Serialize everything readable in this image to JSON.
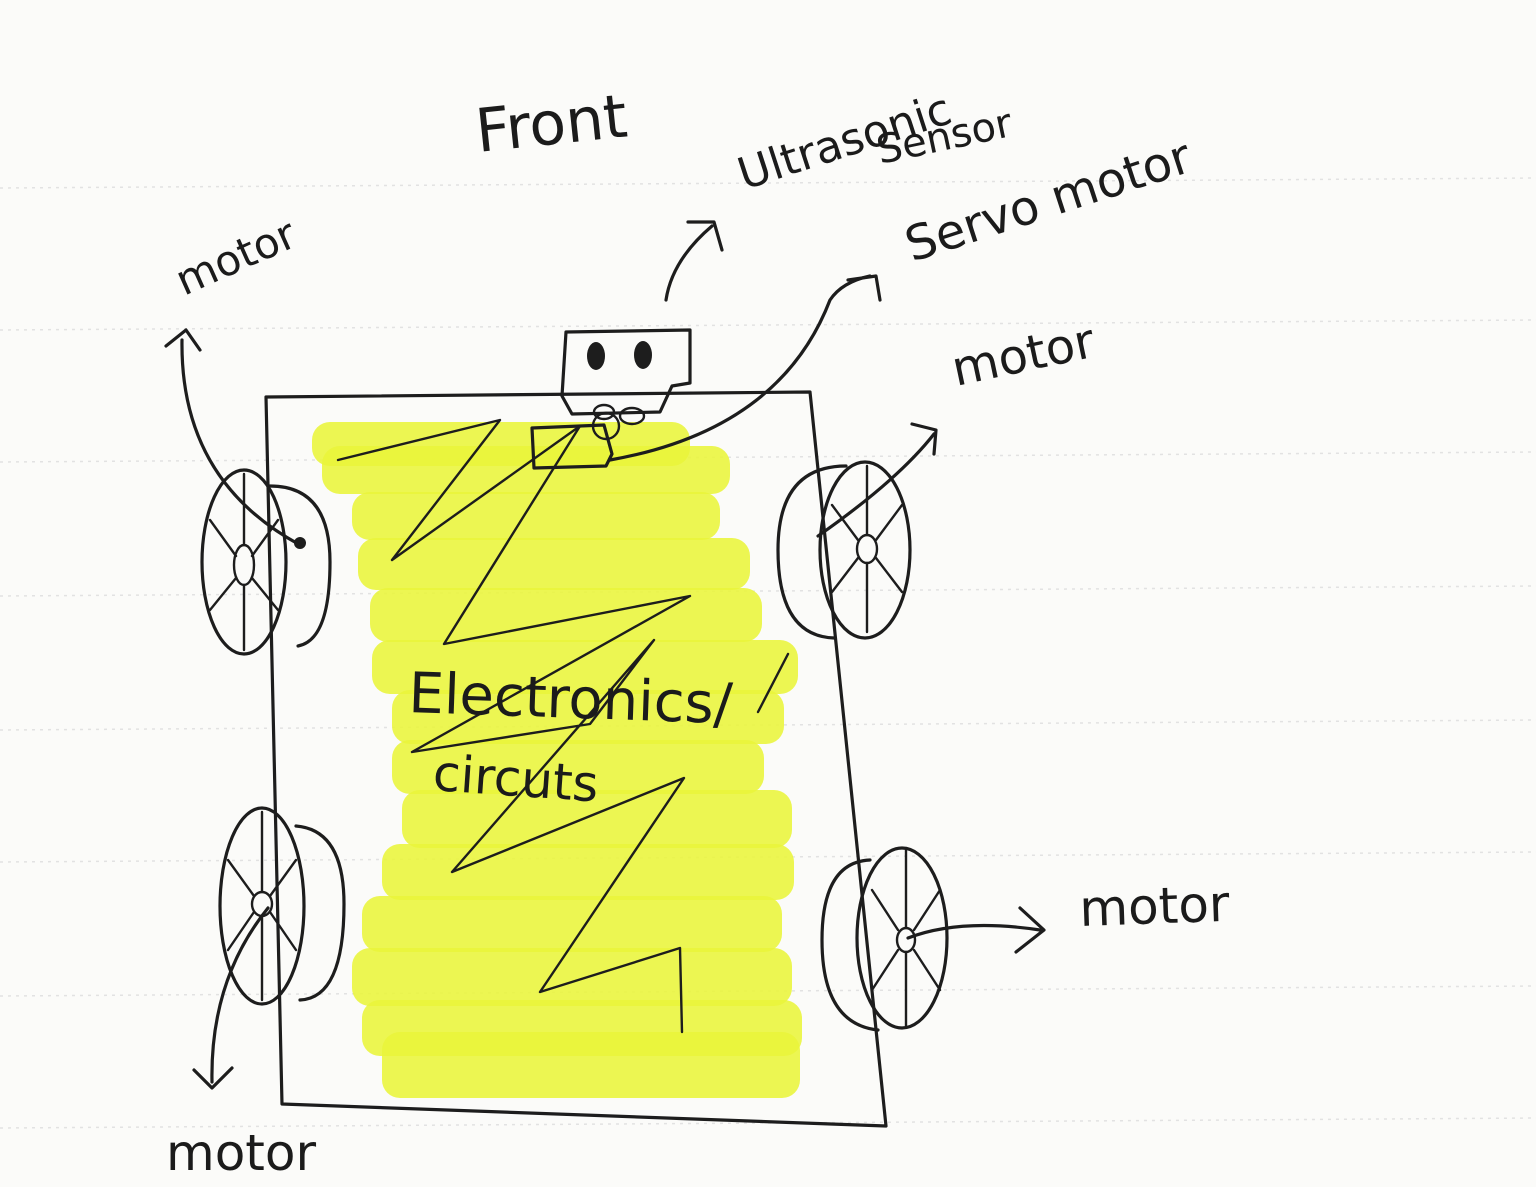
{
  "labels": {
    "front": "Front",
    "ultrasonic_line1": "Ultrasonic",
    "ultrasonic_line2": "Sensor",
    "servo": "Servo motor",
    "motor_top_left": "motor",
    "motor_top_right": "motor",
    "motor_bottom_left": "motor",
    "motor_bottom_right": "motor",
    "center_line1": "Electronics/",
    "center_line2": "circuts"
  },
  "colors": {
    "paper": "#fbfbf9",
    "ink": "#1d1d1d",
    "highlighter": "#e9f53a",
    "rule_lines": "#e2e2e2"
  },
  "icons": [
    "ultrasonic-sensor-icon",
    "servo-motor-icon",
    "wheel-icon"
  ]
}
